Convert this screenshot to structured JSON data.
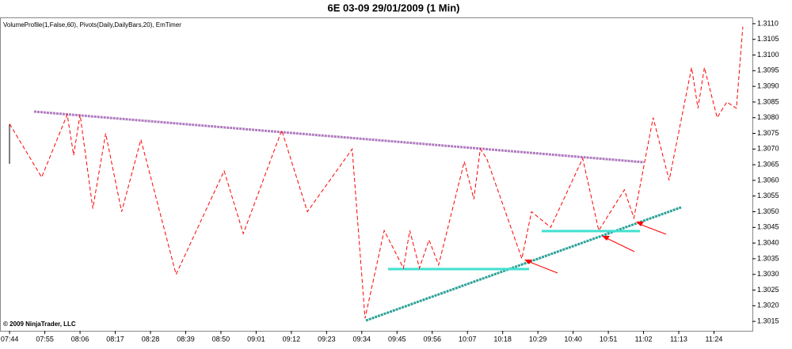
{
  "chart_data": {
    "type": "line",
    "title": "6E 03-09  29/01/2009 (1 Min)",
    "indicators": "VolumeProfile(1,False,60), Pivots(Daily,DailyBars,20), EmTimer",
    "copyright": "© 2009 NinjaTrader, LLC",
    "x": [
      "07:44",
      "07:54",
      "08:02",
      "08:04",
      "08:06",
      "08:10",
      "08:14",
      "08:19",
      "08:25",
      "08:36",
      "08:51",
      "08:57",
      "09:09",
      "09:17",
      "09:31",
      "09:35",
      "09:41",
      "09:47",
      "09:49",
      "09:52",
      "09:55",
      "09:58",
      "10:06",
      "10:09",
      "10:11",
      "10:13",
      "10:24",
      "10:27",
      "10:33",
      "10:43",
      "10:48",
      "10:56",
      "10:59",
      "11:05",
      "11:10",
      "11:17",
      "11:19",
      "11:21",
      "11:25",
      "11:28",
      "11:31",
      "11:33"
    ],
    "series": [
      {
        "color": "#ff0000",
        "values": [
          1.3078,
          1.3061,
          1.3081,
          1.3068,
          1.3081,
          1.3051,
          1.3075,
          1.305,
          1.3073,
          1.303,
          1.3063,
          1.3043,
          1.3076,
          1.305,
          1.307,
          1.3016,
          1.3044,
          1.3032,
          1.3044,
          1.3032,
          1.3041,
          1.3033,
          1.3066,
          1.3054,
          1.307,
          1.3067,
          1.3035,
          1.305,
          1.3045,
          1.3067,
          1.3044,
          1.3057,
          1.3048,
          1.308,
          1.306,
          1.3096,
          1.3083,
          1.3096,
          1.308,
          1.3085,
          1.3083,
          1.3109
        ]
      }
    ],
    "xlim": [
      "07:41",
      "11:36"
    ],
    "xticks": [
      "07:44",
      "07:55",
      "08:06",
      "08:17",
      "08:28",
      "08:39",
      "08:50",
      "09:01",
      "09:12",
      "09:23",
      "09:34",
      "09:45",
      "09:56",
      "10:07",
      "10:18",
      "10:29",
      "10:40",
      "10:51",
      "11:02",
      "11:13",
      "11:24"
    ],
    "ylim": [
      1.3012,
      1.3112
    ],
    "yticks": [
      1.3015,
      {
        "value": 1.302,
        "label": "1.3020"
      },
      1.3025,
      {
        "value": 1.303,
        "label": "1.3030"
      },
      1.3035,
      {
        "value": 1.304,
        "label": "1.3040"
      },
      1.3045,
      {
        "value": 1.305,
        "label": "1.3050"
      },
      1.3055,
      {
        "value": 1.306,
        "label": "1.3060"
      },
      1.3065,
      {
        "value": 1.307,
        "label": "1.3070"
      },
      1.3075,
      {
        "value": 1.308,
        "label": "1.3080"
      },
      1.3085,
      {
        "value": 1.309,
        "label": "1.3090"
      },
      1.3095,
      {
        "value": 1.31,
        "label": "1.3100"
      },
      1.3105,
      {
        "value": 1.311,
        "label": "1.3110"
      }
    ]
  }
}
